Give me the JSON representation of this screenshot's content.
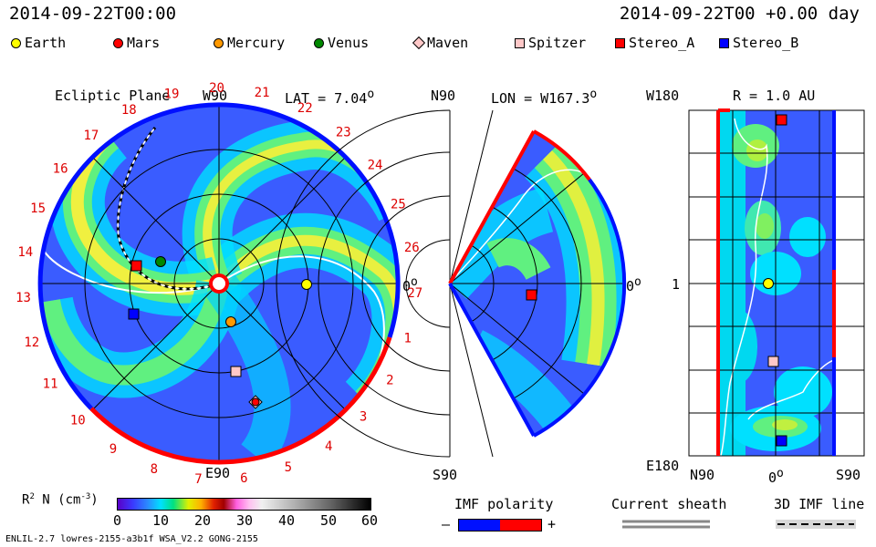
{
  "header": {
    "timestamp": "2014-09-22T00:00",
    "run_time": "2014-09-22T00 +0.00 day"
  },
  "legend": [
    {
      "label": "Earth",
      "color": "#ffff00",
      "shape": "circle"
    },
    {
      "label": "Mars",
      "color": "#ff0000",
      "shape": "circle"
    },
    {
      "label": "Mercury",
      "color": "#ff9900",
      "shape": "circle"
    },
    {
      "label": "Venus",
      "color": "#008800",
      "shape": "circle"
    },
    {
      "label": "Maven",
      "color": "#ffc8c8",
      "shape": "diamond"
    },
    {
      "label": "Spitzer",
      "color": "#ffc8c8",
      "shape": "square"
    },
    {
      "label": "Stereo_A",
      "color": "#ff0000",
      "shape": "square"
    },
    {
      "label": "Stereo_B",
      "color": "#0000ff",
      "shape": "square"
    }
  ],
  "ecliptic": {
    "title": "Ecliptic Plane",
    "lat_label": "LAT = 7.04",
    "lat_unit": "o",
    "top_label": "W90",
    "bottom_label": "E90",
    "right_label": "0",
    "right_unit": "o",
    "day_labels": [
      "19",
      "20",
      "21",
      "22",
      "23",
      "24",
      "25",
      "26",
      "27",
      "1",
      "2",
      "3",
      "4",
      "5",
      "6",
      "7",
      "8",
      "9",
      "10",
      "11",
      "12",
      "13",
      "14",
      "15",
      "16",
      "17",
      "18"
    ]
  },
  "meridional": {
    "title": "LON = W167.3",
    "title_unit": "o",
    "top_label": "N90",
    "bottom_label": "S90",
    "right_label": "0",
    "right_unit": "o"
  },
  "radial": {
    "title": "R = 1.0 AU",
    "top_label": "W180",
    "mid_label": "1",
    "bottom_label": "E180",
    "x_left": "N90",
    "x_mid": "0",
    "x_mid_unit": "o",
    "x_right": "S90"
  },
  "colorbar": {
    "label": "R",
    "label_sup": "2",
    "label_rest": " N (cm",
    "label_exp": "-3",
    "label_close": ")",
    "ticks": [
      "0",
      "10",
      "20",
      "30",
      "40",
      "50",
      "60"
    ]
  },
  "imf": {
    "title": "IMF polarity",
    "minus": "–",
    "plus": "+"
  },
  "sheath": {
    "title": "Current sheath"
  },
  "imf3d": {
    "title": "3D IMF line"
  },
  "footer": {
    "model": "ENLIL-2.7 lowres-2155-a3b1f WSA_V2.2 GONG-2155"
  }
}
